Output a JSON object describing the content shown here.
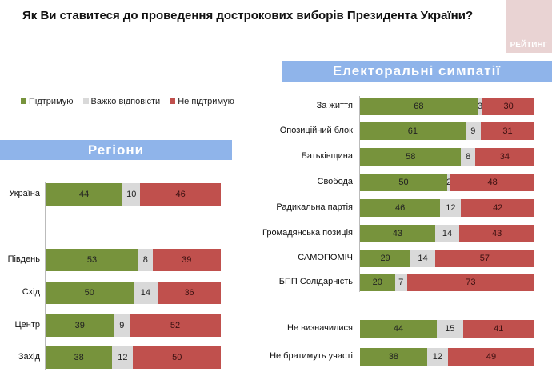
{
  "title": "Як Ви ставитеся до проведення дострокових виборів Президента України?",
  "logo": "РЕЙТИНГ",
  "colors": {
    "support": "#77933c",
    "hard": "#d9d9d9",
    "oppose": "#c0504d"
  },
  "chart_data": [
    {
      "type": "bar",
      "stacked": true,
      "orientation": "horizontal",
      "title": "Регіони",
      "legend": [
        "Підтримую",
        "Важко відповісти",
        "Не підтримую"
      ],
      "categories": [
        "Україна",
        "Південь",
        "Схід",
        "Центр",
        "Захід"
      ],
      "series": [
        {
          "name": "Підтримую",
          "values": [
            44,
            53,
            50,
            39,
            38
          ]
        },
        {
          "name": "Важко відповісти",
          "values": [
            10,
            8,
            14,
            9,
            12
          ]
        },
        {
          "name": "Не підтримую",
          "values": [
            46,
            39,
            36,
            52,
            50
          ]
        }
      ]
    },
    {
      "type": "bar",
      "stacked": true,
      "orientation": "horizontal",
      "title": "Електоральні симпатії",
      "categories": [
        "За життя",
        "Опозиційний блок",
        "Батьківщина",
        "Свобода",
        "Радикальна партія",
        "Громадянська позиція",
        "САМОПОМІЧ",
        "БПП Солідарність",
        "Не визначилися",
        "Не братимуть участі"
      ],
      "series": [
        {
          "name": "Підтримую",
          "values": [
            68,
            61,
            58,
            50,
            46,
            43,
            29,
            20,
            44,
            38
          ]
        },
        {
          "name": "Важко відповісти",
          "values": [
            3,
            9,
            8,
            2,
            12,
            14,
            14,
            7,
            15,
            12
          ]
        },
        {
          "name": "Не підтримую",
          "values": [
            30,
            31,
            34,
            48,
            42,
            43,
            57,
            73,
            41,
            49
          ]
        }
      ]
    }
  ]
}
